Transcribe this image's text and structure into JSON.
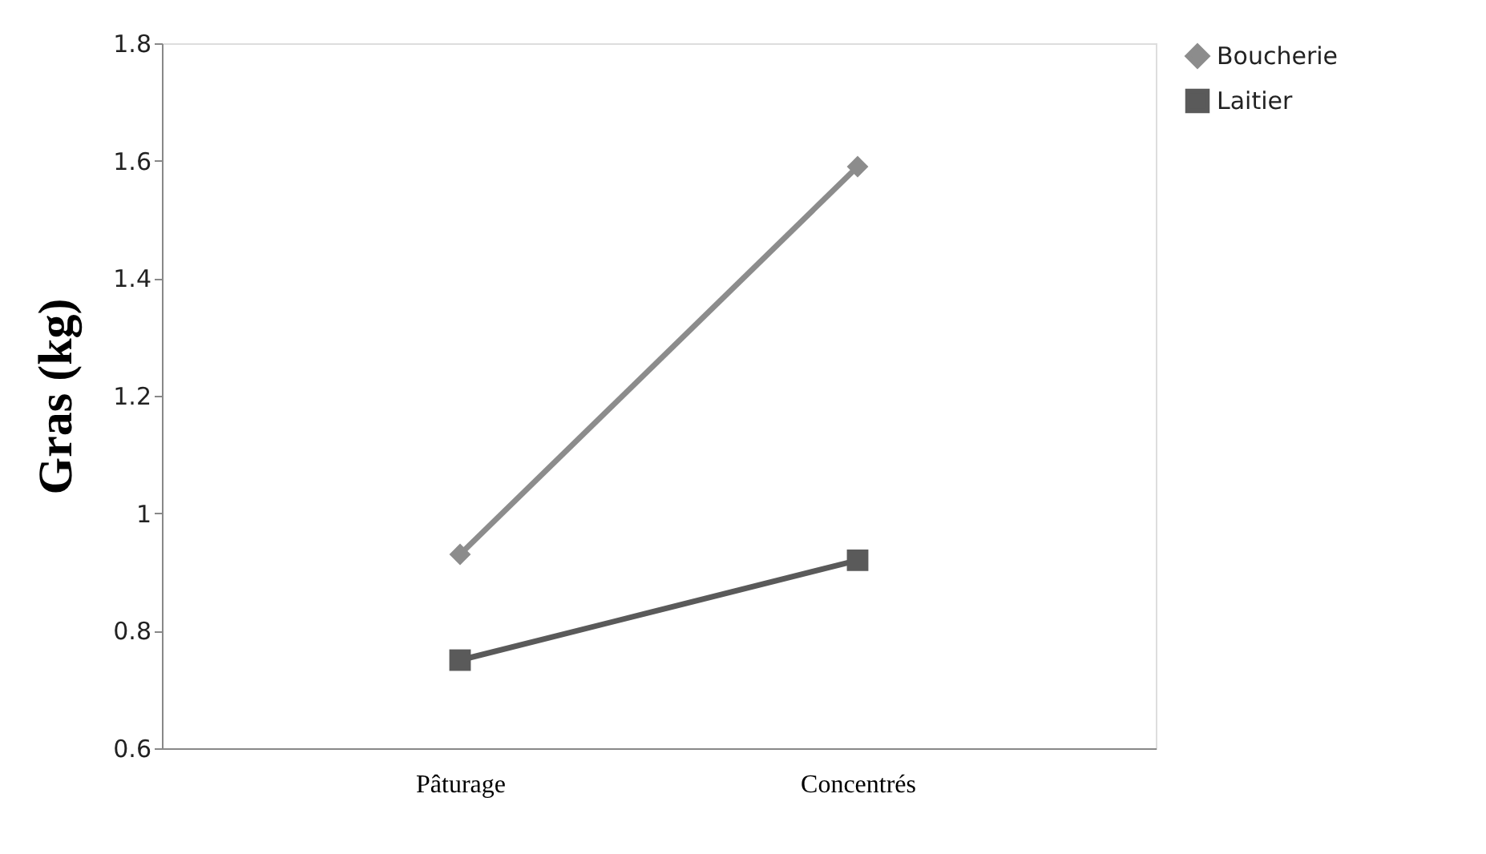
{
  "chart_data": {
    "type": "line",
    "ylabel": "Gras (kg)",
    "categories": [
      "Pâturage",
      "Concentrés"
    ],
    "series": [
      {
        "name": "Boucherie",
        "color": "#8c8c8c",
        "marker": "diamond",
        "values": [
          0.93,
          1.59
        ]
      },
      {
        "name": "Laitier",
        "color": "#5a5a5a",
        "marker": "square",
        "values": [
          0.75,
          0.92
        ]
      }
    ],
    "ylim": [
      0.6,
      1.8
    ],
    "yticks": [
      0.6,
      0.8,
      1,
      1.2,
      1.4,
      1.6,
      1.8
    ],
    "grid": false,
    "legend": "right"
  }
}
